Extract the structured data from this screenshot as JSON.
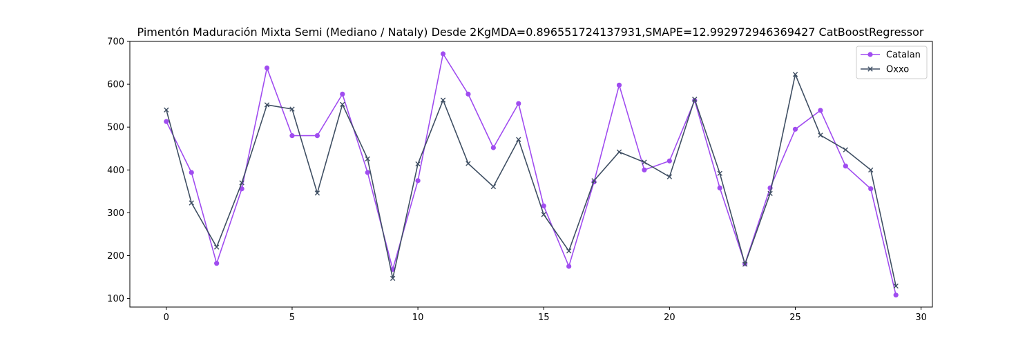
{
  "chart_data": {
    "type": "line",
    "title": "Pimentón Maduración Mixta Semi (Mediano / Nataly) Desde 2KgMDA=0.896551724137931,SMAPE=12.992972946369427 CatBoostRegressor",
    "xlabel": "",
    "ylabel": "",
    "xlim": [
      -1.45,
      30.45
    ],
    "ylim": [
      80,
      700
    ],
    "xticks": [
      0,
      5,
      10,
      15,
      20,
      25,
      30
    ],
    "yticks": [
      100,
      200,
      300,
      400,
      500,
      600,
      700
    ],
    "grid": false,
    "legend_position": "top-right",
    "x": [
      0,
      1,
      2,
      3,
      4,
      5,
      6,
      7,
      8,
      9,
      10,
      11,
      12,
      13,
      14,
      15,
      16,
      17,
      18,
      19,
      20,
      21,
      22,
      23,
      24,
      25,
      26,
      27,
      28,
      29
    ],
    "series": [
      {
        "name": "Catalan",
        "color": "#a04cf0",
        "marker": "circle",
        "values": [
          513,
          394,
          182,
          356,
          638,
          480,
          480,
          577,
          394,
          168,
          375,
          671,
          577,
          452,
          555,
          316,
          175,
          372,
          598,
          400,
          421,
          562,
          358,
          181,
          358,
          495,
          539,
          409,
          356,
          108
        ]
      },
      {
        "name": "Oxxo",
        "color": "#3f4f63",
        "marker": "x",
        "values": [
          540,
          323,
          220,
          370,
          552,
          542,
          346,
          553,
          426,
          147,
          414,
          563,
          415,
          361,
          471,
          296,
          211,
          375,
          442,
          418,
          384,
          565,
          392,
          180,
          345,
          623,
          481,
          447,
          400,
          129
        ]
      }
    ]
  }
}
